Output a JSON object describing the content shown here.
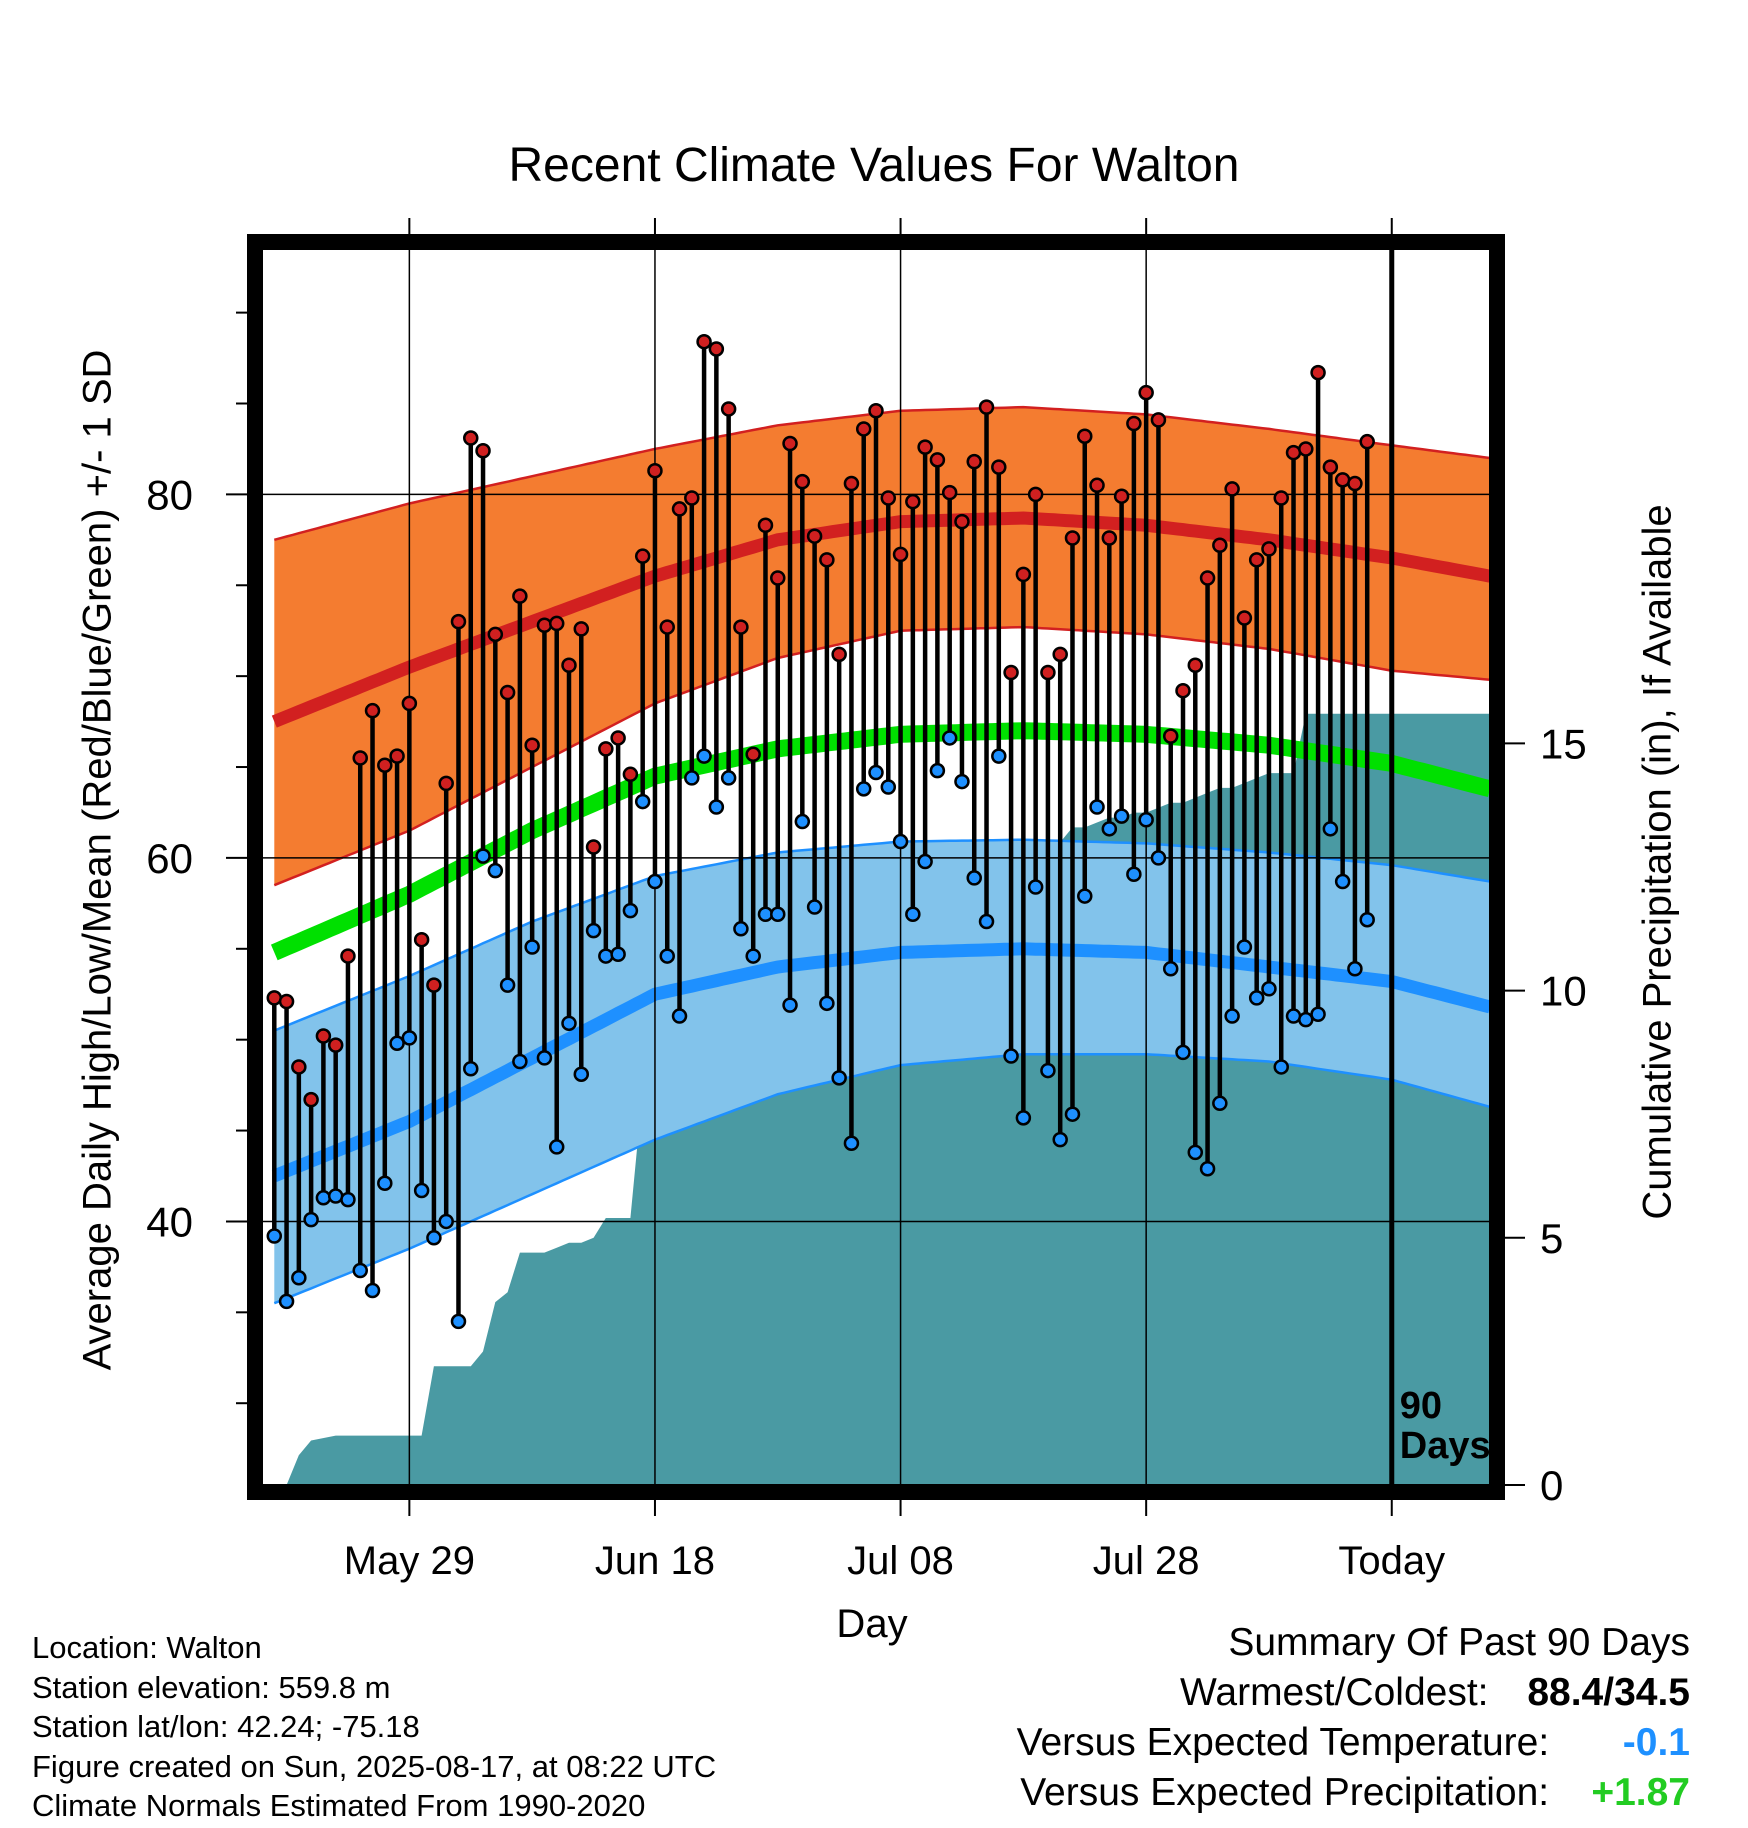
{
  "chart_data": {
    "type": "line",
    "title": "Recent Climate Values For Walton",
    "xlabel": "Day",
    "ylabel_left": "Average Daily High/Low/Mean (Red/Blue/Green) +/- 1 SD",
    "ylabel_right": "Cumulative Precipitation (in), If Available",
    "x_tick_labels": [
      "May 29",
      "Jun 18",
      "Jul 08",
      "Jul 28",
      "Today"
    ],
    "x_tick_days": [
      18,
      38,
      58,
      78,
      98
    ],
    "y_left_ticks": [
      40,
      60,
      80
    ],
    "y_left_range": [
      25.5,
      93.5
    ],
    "y_right_ticks": [
      0,
      5,
      10,
      15
    ],
    "y_right_range": [
      0,
      25
    ],
    "x_range": [
      6,
      106
    ],
    "marker_label": "90 Days",
    "colors": {
      "high_band": "#f47c30",
      "high_mean": "#d22020",
      "mean": "#00e000",
      "low_band": "#82c3eb",
      "low_mean": "#1e90ff",
      "precip": "#4a9aa3",
      "high_point": "#d02020",
      "low_point": "#1e90ff"
    },
    "normals": {
      "days": [
        7,
        18,
        28,
        38,
        48,
        58,
        68,
        78,
        88,
        98,
        106
      ],
      "high_mean": [
        67.5,
        70.5,
        73.0,
        75.5,
        77.5,
        78.5,
        78.7,
        78.3,
        77.5,
        76.5,
        75.5
      ],
      "high_upper": [
        77.5,
        79.5,
        81.0,
        82.5,
        83.8,
        84.6,
        84.8,
        84.4,
        83.6,
        82.7,
        82.0
      ],
      "high_lower": [
        58.5,
        61.5,
        65.0,
        68.5,
        71.0,
        72.5,
        72.7,
        72.3,
        71.5,
        70.3,
        69.8
      ],
      "mean": [
        54.8,
        58.0,
        61.5,
        64.5,
        66.0,
        66.8,
        67.0,
        66.8,
        66.2,
        65.2,
        63.8
      ],
      "low_mean": [
        42.5,
        45.5,
        49.0,
        52.5,
        54.0,
        54.8,
        55.0,
        54.8,
        54.0,
        53.2,
        51.8
      ],
      "low_upper": [
        50.5,
        53.5,
        56.5,
        59.0,
        60.3,
        60.9,
        61.0,
        60.8,
        60.3,
        59.6,
        58.7
      ],
      "low_lower": [
        35.5,
        38.5,
        41.5,
        44.5,
        47.0,
        48.6,
        49.2,
        49.2,
        48.8,
        47.8,
        46.3
      ]
    },
    "observations": {
      "day_start": 7,
      "highs": [
        52.3,
        52.1,
        48.5,
        46.7,
        50.2,
        49.7,
        54.6,
        65.5,
        68.1,
        65.1,
        65.6,
        68.5,
        55.5,
        53.0,
        64.1,
        73.0,
        83.1,
        82.4,
        72.3,
        69.1,
        74.4,
        66.2,
        72.8,
        72.9,
        70.6,
        72.6,
        60.6,
        66.0,
        66.6,
        64.6,
        76.6,
        81.3,
        72.7,
        79.2,
        79.8,
        88.4,
        88.0,
        84.7,
        72.7,
        65.7,
        78.3,
        75.4,
        82.8,
        80.7,
        77.7,
        76.4,
        71.2,
        80.6,
        83.6,
        84.6,
        79.8,
        76.7,
        79.6,
        82.6,
        81.9,
        80.1,
        78.5,
        81.8,
        84.8,
        81.5,
        70.2,
        75.6,
        80.0,
        70.2,
        71.2,
        77.6,
        83.2,
        80.5,
        77.6,
        79.9,
        83.9,
        85.6,
        84.1,
        66.7,
        69.2,
        70.6,
        75.4,
        77.2,
        80.3,
        73.2,
        76.4,
        77.0,
        79.8,
        82.3,
        82.5,
        86.7,
        81.5,
        80.8,
        80.6,
        82.9
      ],
      "lows": [
        39.2,
        35.6,
        36.9,
        40.1,
        41.3,
        41.4,
        41.2,
        37.3,
        36.2,
        42.1,
        49.8,
        50.1,
        41.7,
        39.1,
        40.0,
        34.5,
        48.4,
        60.1,
        59.3,
        53.0,
        48.8,
        55.1,
        49.0,
        44.1,
        50.9,
        48.1,
        56.0,
        54.6,
        54.7,
        57.1,
        63.1,
        58.7,
        54.6,
        51.3,
        64.4,
        65.6,
        62.8,
        64.4,
        56.1,
        54.6,
        56.9,
        56.9,
        51.9,
        62.0,
        57.3,
        52.0,
        47.9,
        44.3,
        63.8,
        64.7,
        63.9,
        60.9,
        56.9,
        59.8,
        64.8,
        66.6,
        64.2,
        58.9,
        56.5,
        65.6,
        49.1,
        45.7,
        58.4,
        48.3,
        44.5,
        45.9,
        57.9,
        62.8,
        61.6,
        62.3,
        59.1,
        62.1,
        60.0,
        53.9,
        49.3,
        43.8,
        42.9,
        46.5,
        51.3,
        55.1,
        52.3,
        52.8,
        48.5,
        51.3,
        51.1,
        51.4,
        61.6,
        58.7,
        53.9,
        56.6
      ]
    },
    "precip": {
      "days": [
        8,
        9,
        10,
        12,
        15,
        18,
        19,
        20,
        21,
        22,
        23,
        24,
        25,
        26,
        27,
        28,
        29,
        30,
        31,
        32,
        33,
        34,
        35,
        36,
        37,
        38,
        39,
        40,
        41,
        42,
        43,
        44,
        45,
        46,
        47,
        48,
        49,
        50,
        51,
        52,
        53,
        54,
        55,
        56,
        57,
        58,
        59,
        60,
        61,
        62,
        63,
        64,
        65,
        66,
        67,
        68,
        69,
        70,
        71,
        72,
        73,
        74,
        75,
        76,
        77,
        78,
        79,
        80,
        81,
        82,
        83,
        84,
        85,
        86,
        87,
        88,
        89,
        90,
        91,
        92,
        93,
        94,
        95,
        96,
        97,
        98,
        106
      ],
      "values": [
        0.0,
        0.6,
        0.9,
        1.0,
        1.0,
        1.0,
        1.0,
        2.4,
        2.4,
        2.4,
        2.4,
        2.7,
        3.7,
        3.9,
        4.7,
        4.7,
        4.7,
        4.8,
        4.9,
        4.9,
        5.0,
        5.4,
        5.4,
        5.4,
        8.0,
        8.0,
        8.0,
        8.3,
        8.3,
        8.6,
        8.6,
        8.6,
        9.1,
        9.1,
        9.1,
        9.1,
        9.1,
        9.1,
        9.3,
        9.8,
        9.8,
        10.7,
        11.5,
        12.2,
        12.3,
        12.3,
        12.4,
        12.5,
        12.5,
        12.5,
        12.5,
        12.6,
        12.6,
        12.6,
        12.8,
        12.8,
        12.8,
        12.9,
        13.0,
        13.3,
        13.3,
        13.4,
        13.5,
        13.5,
        13.6,
        13.6,
        13.7,
        13.8,
        13.8,
        13.9,
        14.0,
        14.1,
        14.1,
        14.2,
        14.3,
        14.4,
        14.4,
        14.4,
        15.6,
        15.6,
        15.6,
        15.6,
        15.6,
        15.6,
        15.6,
        15.6,
        15.6
      ]
    }
  },
  "location": "Location: Walton",
  "elevation": "Station elevation: 559.8 m",
  "latlon": "Station lat/lon: 42.24; -75.18",
  "created": "Figure created on Sun, 2025-08-17, at 08:22 UTC",
  "normals_note": "Climate Normals Estimated From 1990-2020",
  "summary": {
    "title": "Summary Of Past 90 Days",
    "warmest_coldest_label": "Warmest/Coldest:",
    "warmest_coldest_value": "88.4/34.5",
    "temp_label": "Versus Expected Temperature:",
    "temp_value": "-0.1",
    "temp_color": "#1e90ff",
    "precip_label": "Versus Expected Precipitation:",
    "precip_value": "+1.87",
    "precip_color": "#22cc22"
  }
}
